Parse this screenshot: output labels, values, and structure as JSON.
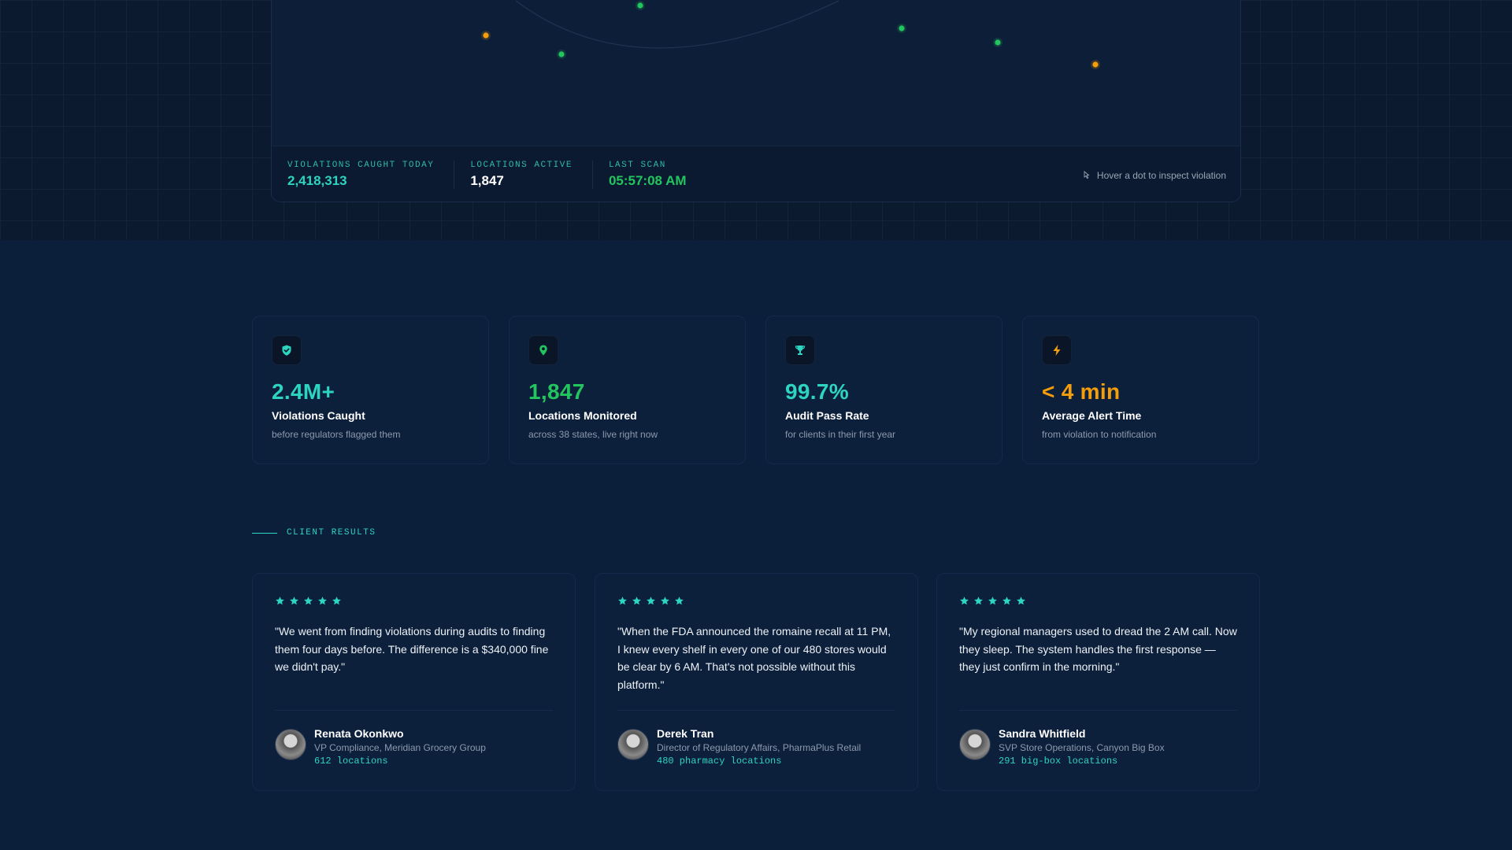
{
  "colors": {
    "teal": "#2dd4bf",
    "green": "#22c55e",
    "orange": "#f59e0b",
    "background": "#0b1e3a"
  },
  "map": {
    "dots": [
      {
        "status": "warning",
        "color": "#f59e0b"
      },
      {
        "status": "ok",
        "color": "#22c55e"
      },
      {
        "status": "ok",
        "color": "#22c55e"
      },
      {
        "status": "ok",
        "color": "#22c55e"
      },
      {
        "status": "ok",
        "color": "#22c55e"
      },
      {
        "status": "warning",
        "color": "#f59e0b"
      }
    ]
  },
  "stats_bar": {
    "violations_label": "VIOLATIONS CAUGHT TODAY",
    "violations_value": "2,418,313",
    "locations_label": "LOCATIONS ACTIVE",
    "locations_value": "1,847",
    "last_scan_label": "LAST SCAN",
    "last_scan_value": "05:57:08 AM",
    "hover_hint": "Hover a dot to inspect violation"
  },
  "stat_cards": [
    {
      "icon": "shield-check-icon",
      "value": "2.4M+",
      "title": "Violations Caught",
      "subtitle": "before regulators flagged them",
      "color": "#2dd4bf"
    },
    {
      "icon": "map-pin-icon",
      "value": "1,847",
      "title": "Locations Monitored",
      "subtitle": "across 38 states, live right now",
      "color": "#22c55e"
    },
    {
      "icon": "trophy-icon",
      "value": "99.7%",
      "title": "Audit Pass Rate",
      "subtitle": "for clients in their first year",
      "color": "#2dd4bf"
    },
    {
      "icon": "lightning-icon",
      "value": "< 4 min",
      "title": "Average Alert Time",
      "subtitle": "from violation to notification",
      "color": "#f59e0b"
    }
  ],
  "section_label": "CLIENT RESULTS",
  "testimonials": [
    {
      "rating": 5,
      "quote": "\"We went from finding violations during audits to finding them four days before. The difference is a $340,000 fine we didn't pay.\"",
      "name": "Renata Okonkwo",
      "role": "VP Compliance, Meridian Grocery Group",
      "locations": "612 locations"
    },
    {
      "rating": 5,
      "quote": "\"When the FDA announced the romaine recall at 11 PM, I knew every shelf in every one of our 480 stores would be clear by 6 AM. That's not possible without this platform.\"",
      "name": "Derek Tran",
      "role": "Director of Regulatory Affairs, PharmaPlus Retail",
      "locations": "480 pharmacy locations"
    },
    {
      "rating": 5,
      "quote": "\"My regional managers used to dread the 2 AM call. Now they sleep. The system handles the first response — they just confirm in the morning.\"",
      "name": "Sandra Whitfield",
      "role": "SVP Store Operations, Canyon Big Box",
      "locations": "291 big-box locations"
    }
  ]
}
